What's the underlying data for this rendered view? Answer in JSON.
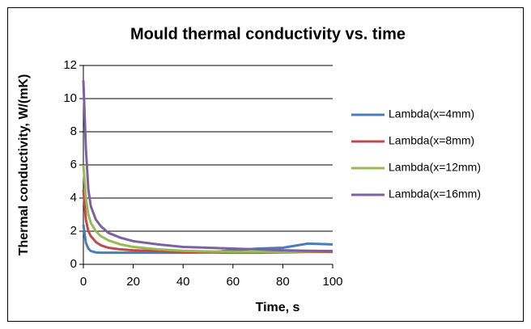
{
  "chart_data": {
    "type": "line",
    "title": "Mould thermal conductivity vs. time",
    "x_label": "Time, s",
    "y_label": "Thermal conductivity, W/(mK)",
    "x": [
      0,
      1,
      2,
      3,
      5,
      7,
      10,
      15,
      20,
      30,
      40,
      50,
      60,
      70,
      80,
      90,
      100
    ],
    "series": [
      {
        "name": "Lambda(x=4mm)",
        "color": "#4a7ebb",
        "values": [
          2.4,
          1.3,
          0.95,
          0.8,
          0.72,
          0.7,
          0.7,
          0.7,
          0.7,
          0.7,
          0.7,
          0.72,
          0.85,
          0.95,
          1.0,
          1.25,
          1.2
        ]
      },
      {
        "name": "Lambda(x=8mm)",
        "color": "#be4b48",
        "values": [
          4.5,
          2.7,
          2.0,
          1.7,
          1.35,
          1.15,
          1.0,
          0.9,
          0.85,
          0.8,
          0.75,
          0.72,
          0.7,
          0.7,
          0.72,
          0.75,
          0.75
        ]
      },
      {
        "name": "Lambda(x=12mm)",
        "color": "#98b954",
        "values": [
          6.0,
          4.0,
          3.0,
          2.5,
          2.0,
          1.7,
          1.45,
          1.2,
          1.05,
          0.9,
          0.82,
          0.78,
          0.75,
          0.75,
          0.75,
          0.78,
          0.8
        ]
      },
      {
        "name": "Lambda(x=16mm)",
        "color": "#7d60a0",
        "values": [
          11.1,
          7.0,
          4.5,
          3.5,
          2.7,
          2.3,
          1.9,
          1.6,
          1.4,
          1.2,
          1.05,
          1.0,
          0.95,
          0.9,
          0.85,
          0.82,
          0.8
        ]
      }
    ],
    "xlim": [
      0,
      100
    ],
    "xticks": [
      0,
      20,
      40,
      60,
      80,
      100
    ],
    "ylim": [
      0,
      12
    ],
    "yticks": [
      0,
      2,
      4,
      6,
      8,
      10,
      12
    ],
    "grid": true,
    "legend": "right"
  }
}
